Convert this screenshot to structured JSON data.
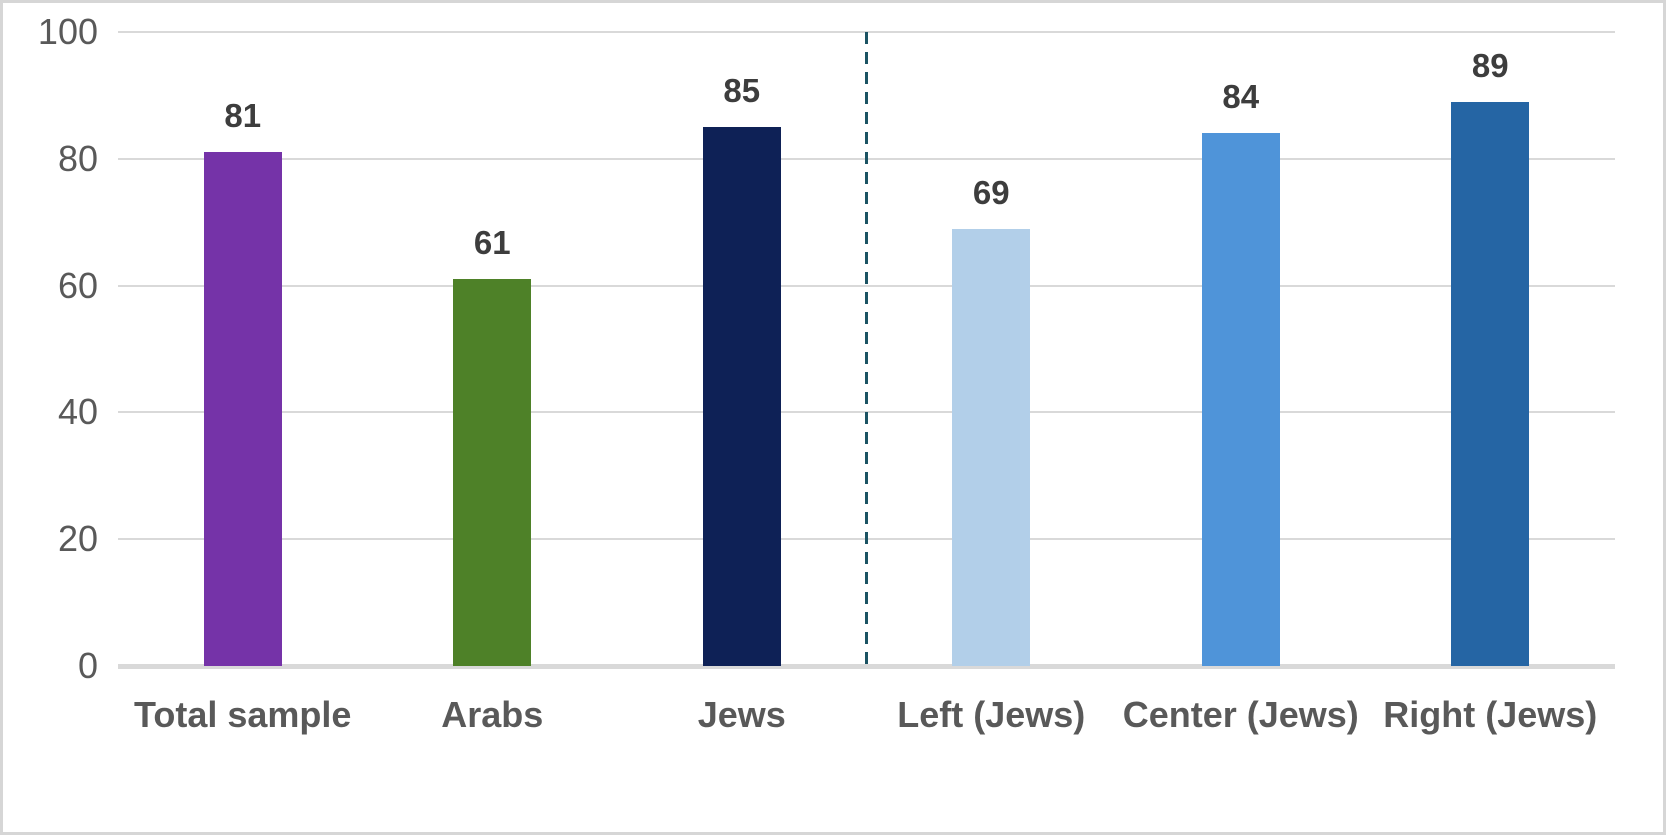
{
  "chart_data": {
    "type": "bar",
    "title": "",
    "xlabel": "",
    "ylabel": "",
    "categories": [
      "Total sample",
      "Arabs",
      "Jews",
      "Left (Jews)",
      "Center (Jews)",
      "Right (Jews)"
    ],
    "values": [
      81,
      61,
      85,
      69,
      84,
      89
    ],
    "bar_colors": [
      "#7533a8",
      "#4e8128",
      "#0e2156",
      "#b2cfe9",
      "#4f94d9",
      "#2565a4"
    ],
    "ylim": [
      0,
      100
    ],
    "yticks": [
      0,
      20,
      40,
      60,
      80,
      100
    ],
    "grid": true,
    "legend": false,
    "divider": {
      "position_after_category": "Jews",
      "style": "dashed",
      "color": "#1b5363"
    }
  },
  "colors": {
    "background": "#ffffff",
    "frame_border": "#d6d6d6",
    "gridline": "#d9d9d9",
    "axis_line": "#d9d9d9",
    "tick_label": "#595959",
    "category_label": "#595959",
    "value_label": "#3d3d3d"
  }
}
